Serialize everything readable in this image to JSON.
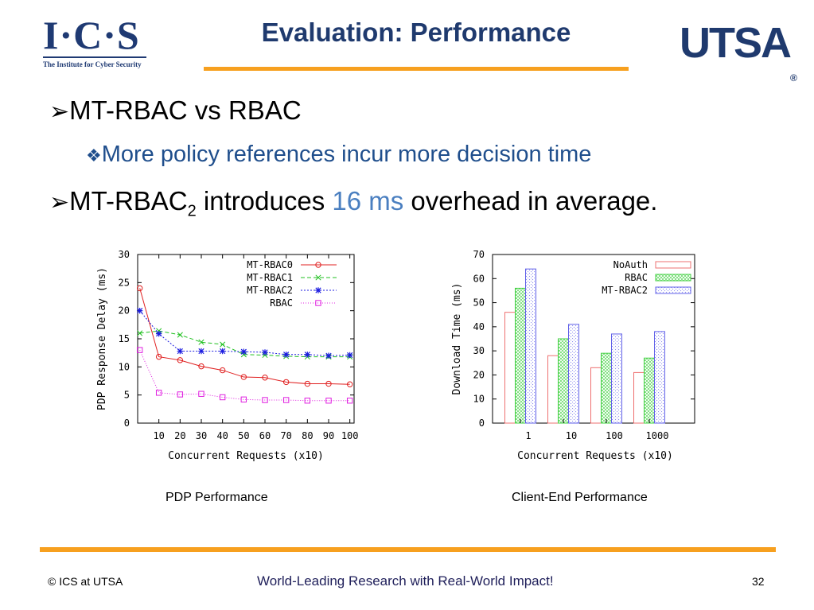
{
  "header": {
    "ics_logo_text": "I·C·S",
    "ics_logo_subtitle": "The Institute for Cyber Security",
    "title": "Evaluation: Performance",
    "utsa_logo_text": "UTSA",
    "utsa_logo_mark": "®"
  },
  "bullets": {
    "b1": "MT-RBAC vs RBAC",
    "b2": "More policy references incur more decision time",
    "b3_pre": "MT-RBAC",
    "b3_sub": "2",
    "b3_mid": " introduces ",
    "b3_hl": "16 ms",
    "b3_post": " overhead in average."
  },
  "captions": {
    "left": "PDP Performance",
    "right": "Client-End Performance"
  },
  "footer": {
    "left": "© ICS at UTSA",
    "middle": "World-Leading Research with Real-World Impact!",
    "page": "32"
  },
  "colors": {
    "title": "#1f3a6e",
    "accent_rule": "#f7a01f",
    "bullet2": "#1f4e8c",
    "highlight": "#4a7fc0"
  },
  "chart_data": [
    {
      "type": "line",
      "xlabel": "Concurrent Requests (x10)",
      "ylabel": "PDP Response Delay (ms)",
      "x": [
        1,
        10,
        20,
        30,
        40,
        50,
        60,
        70,
        80,
        90,
        100
      ],
      "xticks": [
        10,
        20,
        30,
        40,
        50,
        60,
        70,
        80,
        90,
        100
      ],
      "xlim": [
        0,
        102
      ],
      "ylim": [
        0,
        30
      ],
      "yticks": [
        0,
        5,
        10,
        15,
        20,
        25,
        30
      ],
      "legend_position": "top-right",
      "series": [
        {
          "name": "MT-RBAC0",
          "color": "#e02020",
          "marker": "circle",
          "dash": "",
          "values": [
            24,
            11.8,
            11.2,
            10.1,
            9.4,
            8.2,
            8.1,
            7.3,
            7.0,
            7.0,
            6.9
          ]
        },
        {
          "name": "MT-RBAC1",
          "color": "#20c020",
          "marker": "x",
          "dash": "5,3",
          "values": [
            16,
            16.4,
            15.7,
            14.4,
            14.0,
            12.2,
            12.1,
            11.9,
            11.8,
            11.8,
            11.8
          ]
        },
        {
          "name": "MT-RBAC2",
          "color": "#1c1ce0",
          "marker": "star",
          "dash": "2,2",
          "values": [
            20,
            15.9,
            12.8,
            12.8,
            12.8,
            12.7,
            12.6,
            12.2,
            12.2,
            12.0,
            12.1
          ]
        },
        {
          "name": "RBAC",
          "color": "#e020e0",
          "marker": "square",
          "dash": "1,2",
          "values": [
            13,
            5.4,
            5.1,
            5.2,
            4.6,
            4.2,
            4.1,
            4.1,
            4.0,
            4.0,
            4.0
          ]
        }
      ]
    },
    {
      "type": "bar",
      "xlabel": "Concurrent Requests (x10)",
      "ylabel": "Download Time (ms)",
      "categories": [
        "1",
        "10",
        "100",
        "1000"
      ],
      "ylim": [
        0,
        70
      ],
      "yticks": [
        0,
        10,
        20,
        30,
        40,
        50,
        60,
        70
      ],
      "legend_position": "top-right",
      "series": [
        {
          "name": "NoAuth",
          "color": "#ee7070",
          "pattern": "none",
          "values": [
            46,
            28,
            23,
            21
          ]
        },
        {
          "name": "RBAC",
          "color": "#40d040",
          "pattern": "cross",
          "values": [
            56,
            35,
            29,
            27
          ]
        },
        {
          "name": "MT-RBAC2",
          "color": "#6060e8",
          "pattern": "dots",
          "values": [
            64,
            41,
            37,
            38
          ]
        }
      ]
    }
  ]
}
